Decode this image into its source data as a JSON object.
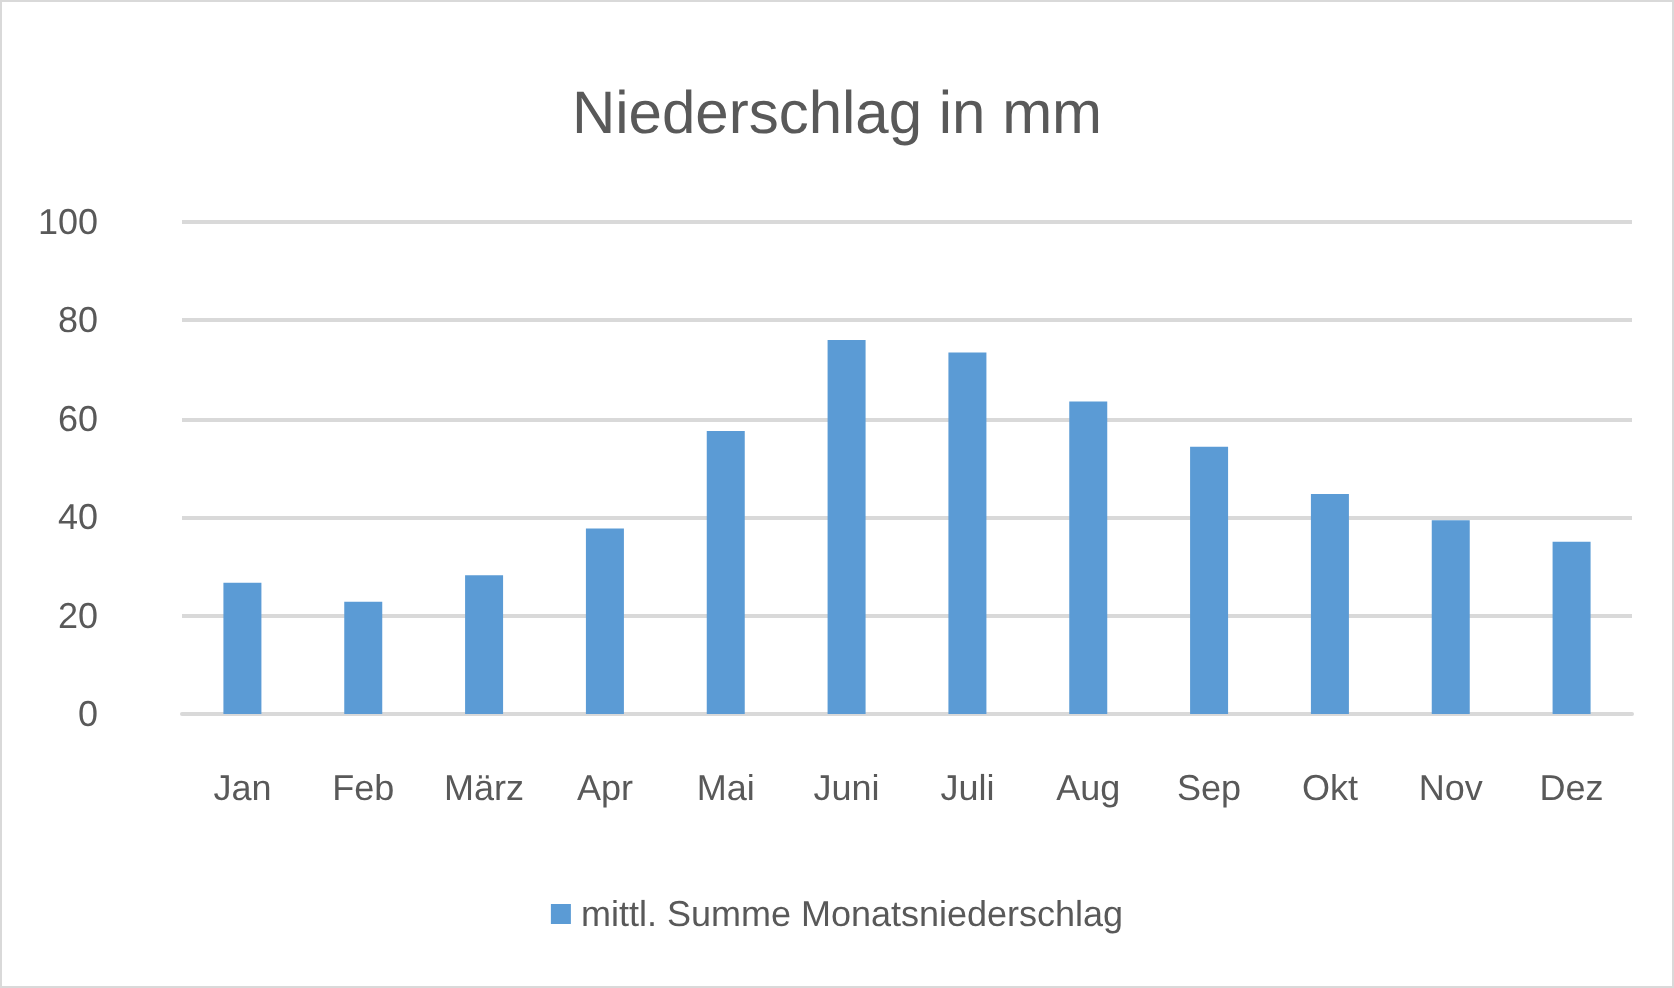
{
  "chart_data": {
    "type": "bar",
    "title": "Niederschlag in mm",
    "categories": [
      "Jan",
      "Feb",
      "März",
      "Apr",
      "Mai",
      "Juni",
      "Juli",
      "Aug",
      "Sep",
      "Okt",
      "Nov",
      "Dez"
    ],
    "series": [
      {
        "name": "mittl. Summe Monatsniederschlag",
        "color": "#5b9bd5",
        "values": [
          26.7,
          22.8,
          28.2,
          37.7,
          57.5,
          76.0,
          73.5,
          63.5,
          54.3,
          44.7,
          39.4,
          35.0
        ]
      }
    ],
    "ylim": [
      0,
      100
    ],
    "yticks": [
      0,
      20,
      40,
      60,
      80,
      100
    ],
    "grid": "y",
    "legend": "bottom"
  }
}
